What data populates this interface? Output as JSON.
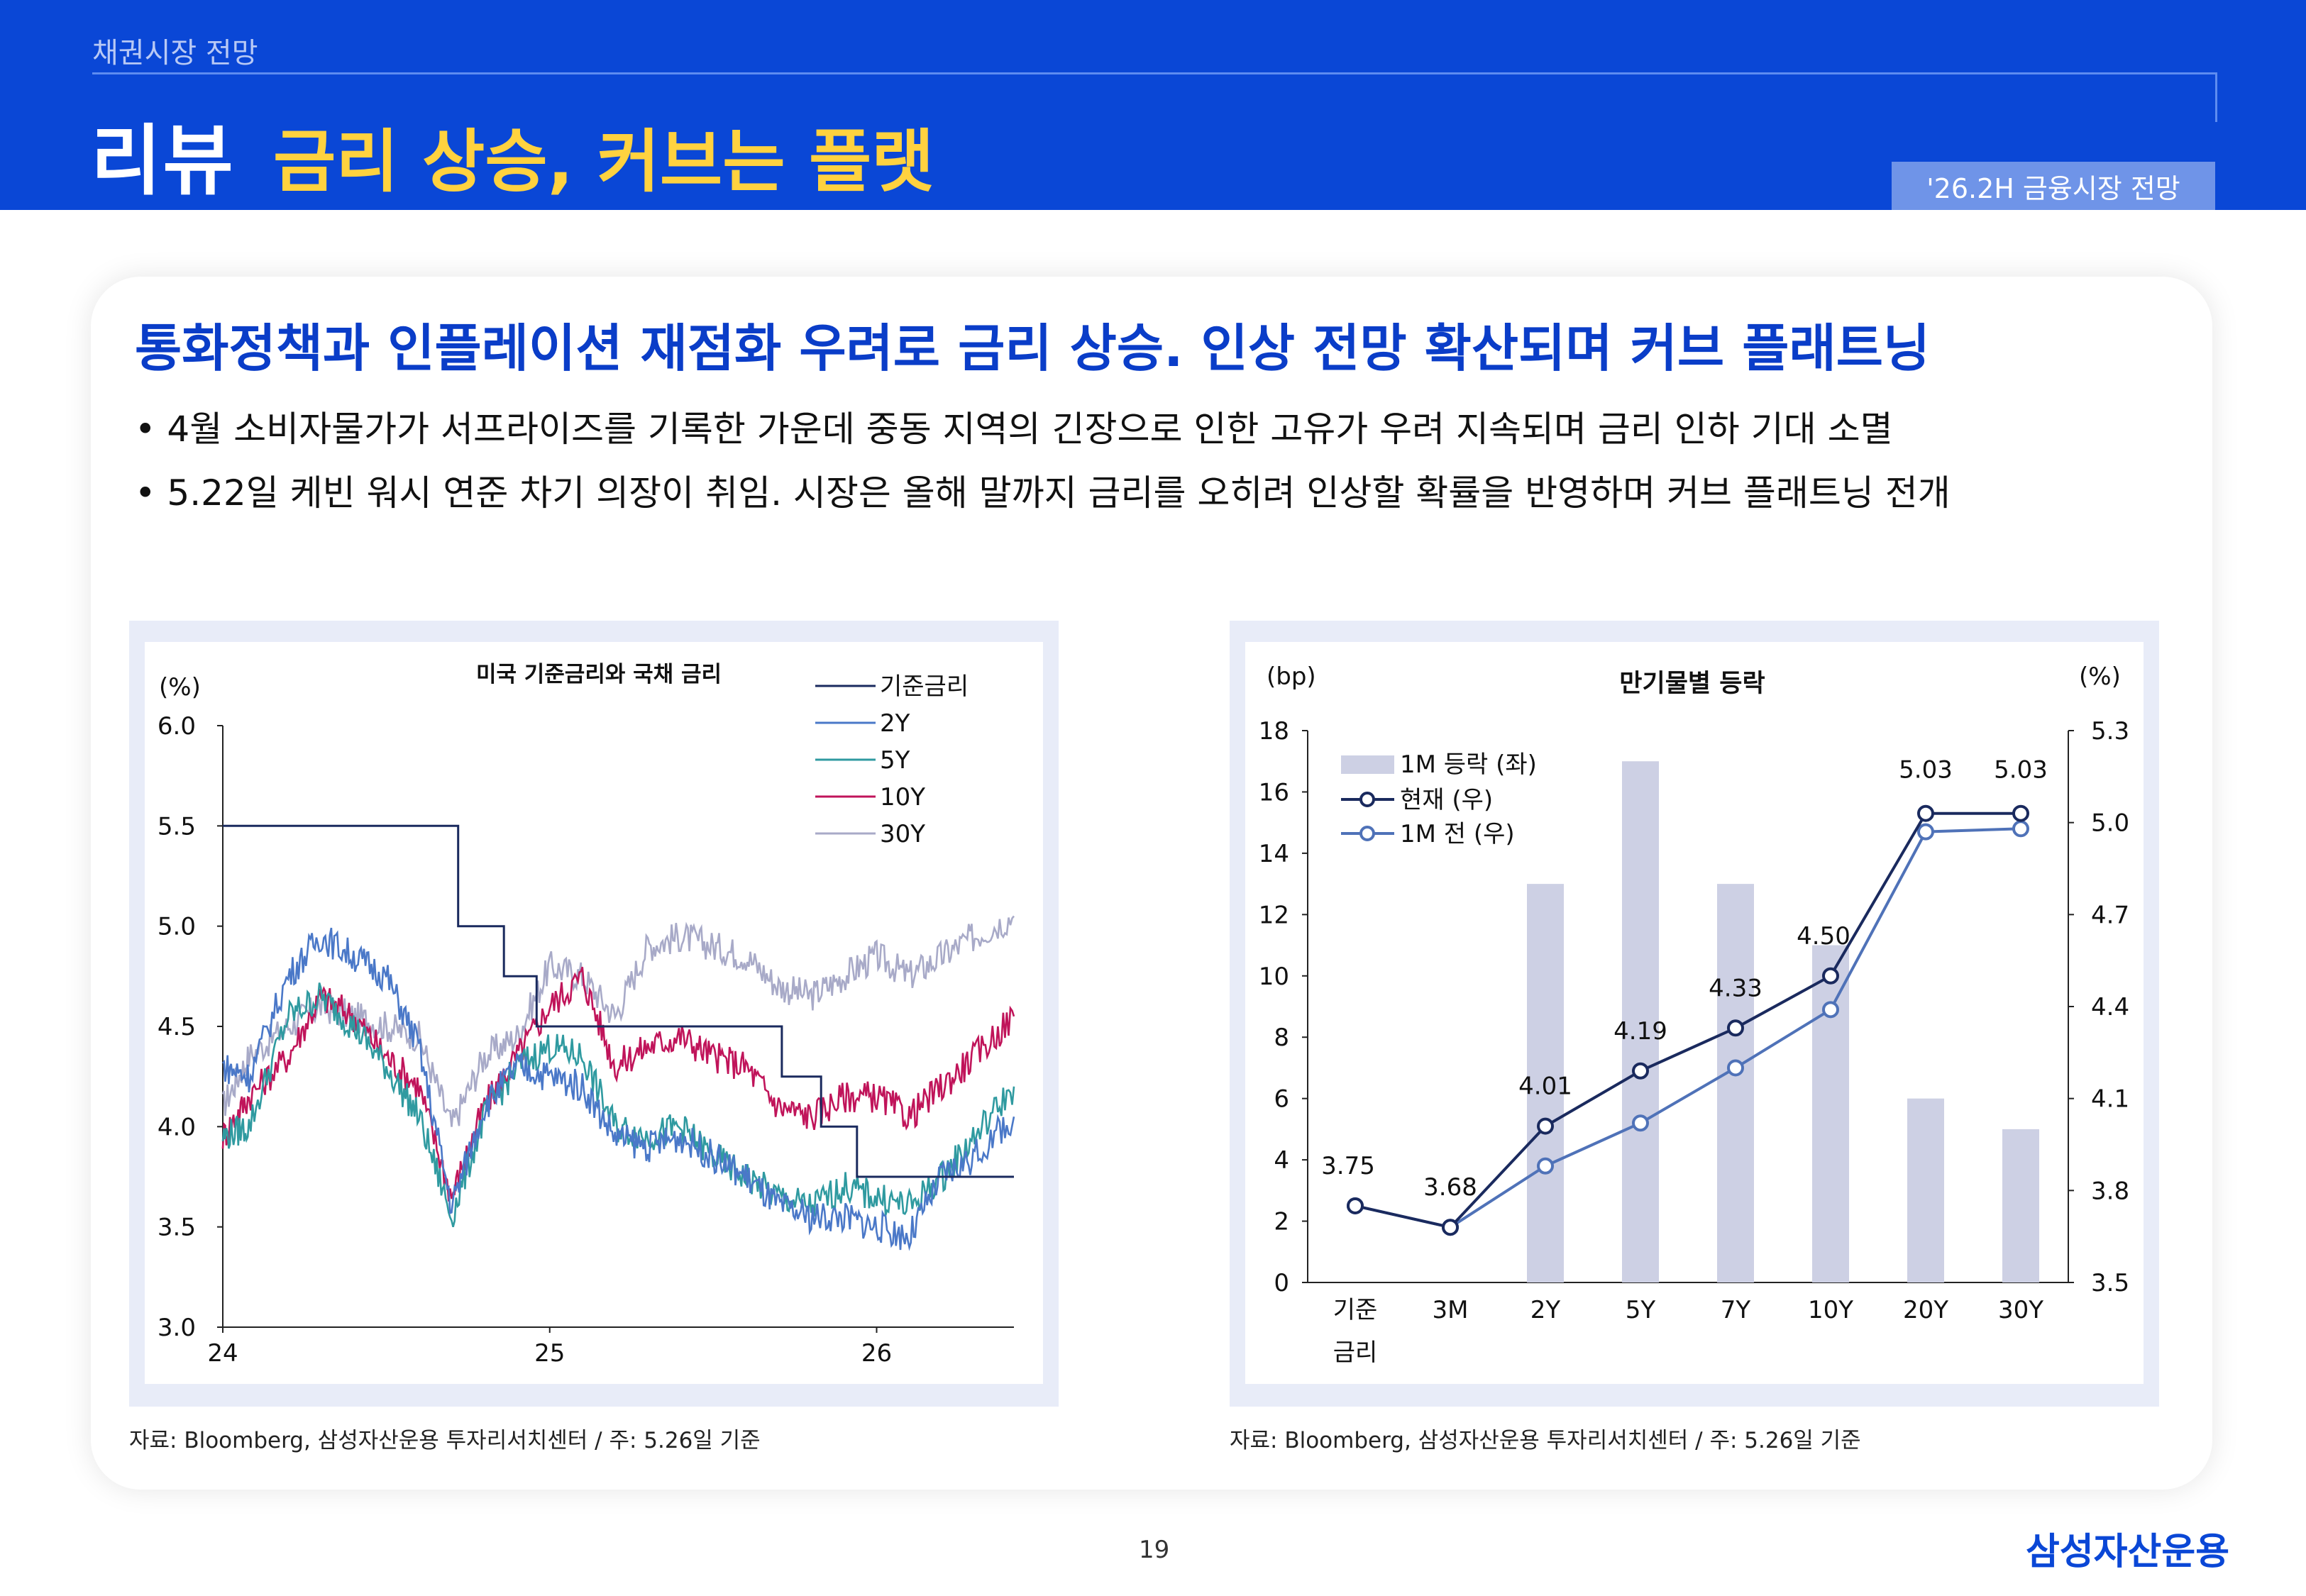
{
  "header": {
    "section_label": "채권시장 전망",
    "title_main": "리뷰",
    "title_sub": "금리 상승, 커브는 플랫",
    "badge": "'26.2H 금융시장 전망"
  },
  "content": {
    "headline": "통화정책과 인플레이션 재점화 우려로 금리 상승. 인상 전망 확산되며 커브 플래트닝",
    "bullets": [
      "• 4월 소비자물가가 서프라이즈를 기록한 가운데 중동 지역의 긴장으로 인한 고유가 우려 지속되며 금리 인하 기대 소멸",
      "• 5.22일 케빈 워시 연준 차기 의장이 취임. 시장은 올해 말까지 금리를 오히려 인상할 확률을 반영하며 커브 플래트닝 전개"
    ]
  },
  "sources": {
    "left": "자료: Bloomberg, 삼성자산운용 투자리서치센터 / 주: 5.26일 기준",
    "right": "자료: Bloomberg, 삼성자산운용 투자리서치센터 / 주: 5.26일 기준"
  },
  "footer": {
    "page_number": "19",
    "logo": "삼성자산운용"
  },
  "chart_data": [
    {
      "type": "line",
      "title": "미국 기준금리와 국채 금리",
      "ylabel": "(%)",
      "ylim": [
        3.0,
        6.0
      ],
      "y_ticks": [
        "6.0",
        "5.5",
        "5.0",
        "4.5",
        "4.0",
        "3.5",
        "3.0"
      ],
      "x_ticks": [
        "24",
        "25",
        "26"
      ],
      "x_tick_values": [
        2024,
        2025,
        2026
      ],
      "xlim": [
        2024.0,
        2026.42
      ],
      "legend_position": "top-right",
      "colors": {
        "기준금리": "#1a2a5e",
        "2Y": "#4a78c8",
        "5Y": "#2f9aa0",
        "10Y": "#c0145a",
        "30Y": "#a8aac8"
      },
      "series": [
        {
          "name": "기준금리",
          "step": true,
          "x": [
            2024.0,
            2024.72,
            2024.72,
            2024.86,
            2024.86,
            2024.96,
            2024.96,
            2025.71,
            2025.71,
            2025.83,
            2025.83,
            2025.94,
            2025.94,
            2026.42
          ],
          "y": [
            5.5,
            5.5,
            5.0,
            5.0,
            4.75,
            4.75,
            4.5,
            4.5,
            4.25,
            4.25,
            4.0,
            4.0,
            3.75,
            3.75
          ]
        },
        {
          "name": "2Y",
          "x": [
            2024.0,
            2024.08,
            2024.2,
            2024.3,
            2024.4,
            2024.5,
            2024.6,
            2024.7,
            2024.8,
            2024.9,
            2025.0,
            2025.1,
            2025.2,
            2025.3,
            2025.4,
            2025.5,
            2025.6,
            2025.7,
            2025.8,
            2025.9,
            2026.0,
            2026.1,
            2026.2,
            2026.3,
            2026.42
          ],
          "y": [
            4.3,
            4.25,
            4.75,
            4.95,
            4.85,
            4.75,
            4.4,
            3.6,
            4.1,
            4.3,
            4.25,
            4.2,
            3.95,
            3.9,
            3.95,
            3.85,
            3.75,
            3.6,
            3.55,
            3.55,
            3.5,
            3.45,
            3.75,
            3.85,
            4.05
          ]
        },
        {
          "name": "5Y",
          "x": [
            2024.0,
            2024.08,
            2024.2,
            2024.3,
            2024.4,
            2024.5,
            2024.6,
            2024.7,
            2024.8,
            2024.9,
            2025.0,
            2025.1,
            2025.2,
            2025.3,
            2025.4,
            2025.5,
            2025.6,
            2025.7,
            2025.8,
            2025.9,
            2026.0,
            2026.1,
            2026.2,
            2026.3,
            2026.42
          ],
          "y": [
            3.95,
            4.0,
            4.55,
            4.65,
            4.5,
            4.3,
            4.05,
            3.55,
            4.05,
            4.3,
            4.4,
            4.35,
            4.0,
            3.95,
            4.0,
            3.85,
            3.75,
            3.65,
            3.6,
            3.7,
            3.65,
            3.6,
            3.75,
            3.95,
            4.2
          ]
        },
        {
          "name": "10Y",
          "x": [
            2024.0,
            2024.08,
            2024.2,
            2024.3,
            2024.4,
            2024.5,
            2024.6,
            2024.7,
            2024.8,
            2024.9,
            2025.0,
            2025.1,
            2025.2,
            2025.3,
            2025.4,
            2025.5,
            2025.6,
            2025.7,
            2025.8,
            2025.9,
            2026.0,
            2026.1,
            2026.2,
            2026.3,
            2026.42
          ],
          "y": [
            3.95,
            4.15,
            4.35,
            4.65,
            4.55,
            4.35,
            4.2,
            3.65,
            4.1,
            4.35,
            4.6,
            4.75,
            4.3,
            4.4,
            4.45,
            4.35,
            4.3,
            4.1,
            4.05,
            4.15,
            4.15,
            4.05,
            4.2,
            4.35,
            4.55
          ]
        },
        {
          "name": "30Y",
          "x": [
            2024.0,
            2024.08,
            2024.2,
            2024.3,
            2024.4,
            2024.5,
            2024.6,
            2024.7,
            2024.8,
            2024.9,
            2025.0,
            2025.1,
            2025.2,
            2025.3,
            2025.4,
            2025.5,
            2025.6,
            2025.7,
            2025.8,
            2025.9,
            2026.0,
            2026.1,
            2026.2,
            2026.3,
            2026.42
          ],
          "y": [
            4.1,
            4.35,
            4.5,
            4.6,
            4.55,
            4.5,
            4.45,
            4.0,
            4.35,
            4.45,
            4.8,
            4.75,
            4.55,
            4.9,
            4.95,
            4.9,
            4.85,
            4.7,
            4.65,
            4.75,
            4.85,
            4.75,
            4.85,
            4.95,
            5.05
          ]
        }
      ]
    },
    {
      "type": "bar",
      "title": "만기물별 등락",
      "ylabel_left": "(bp)",
      "ylabel_right": "(%)",
      "categories": [
        "기준\n금리",
        "3M",
        "2Y",
        "5Y",
        "7Y",
        "10Y",
        "20Y",
        "30Y"
      ],
      "ylim_left": [
        0,
        18
      ],
      "y_ticks_left": [
        "18",
        "16",
        "14",
        "12",
        "10",
        "8",
        "6",
        "4",
        "2",
        "0"
      ],
      "ylim_right": [
        3.5,
        5.3
      ],
      "y_ticks_right": [
        "5.3",
        "5.0",
        "4.7",
        "4.4",
        "4.1",
        "3.8",
        "3.5"
      ],
      "legend_position": "top-left",
      "colors": {
        "bar": "#cdd0e4",
        "current": "#1a2a5e",
        "prev": "#4f72b8"
      },
      "series": [
        {
          "name": "1M 등락 (좌)",
          "axis": "left",
          "type": "bar",
          "values": [
            0,
            0,
            13,
            17,
            13,
            11,
            6,
            5
          ]
        },
        {
          "name": "현재 (우)",
          "axis": "right",
          "type": "line",
          "values": [
            3.75,
            3.68,
            4.01,
            4.19,
            4.33,
            4.5,
            5.03,
            5.03
          ]
        },
        {
          "name": "1M 전 (우)",
          "axis": "right",
          "type": "line",
          "values": [
            3.75,
            3.68,
            3.88,
            4.02,
            4.2,
            4.39,
            4.97,
            4.98
          ]
        }
      ],
      "data_labels": [
        "3.75",
        "3.68",
        "4.01",
        "4.19",
        "4.33",
        "4.50",
        "5.03",
        "5.03"
      ]
    }
  ]
}
